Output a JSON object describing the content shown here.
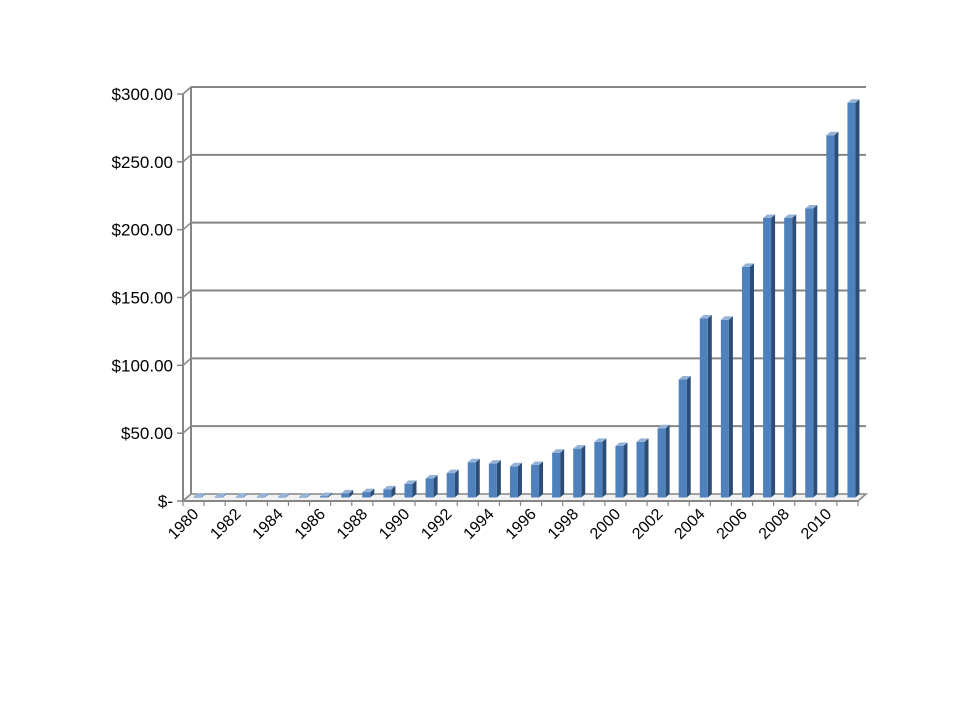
{
  "chart_data": {
    "type": "bar",
    "title": "",
    "xlabel": "",
    "ylabel": "",
    "ylim": [
      0,
      300
    ],
    "grid": true,
    "legend": "none",
    "y_ticks": [
      {
        "value": 0,
        "label": "$-"
      },
      {
        "value": 50,
        "label": "$50.00"
      },
      {
        "value": 100,
        "label": "$100.00"
      },
      {
        "value": 150,
        "label": "$150.00"
      },
      {
        "value": 200,
        "label": "$200.00"
      },
      {
        "value": 250,
        "label": "$250.00"
      },
      {
        "value": 300,
        "label": "$300.00"
      }
    ],
    "x_tick_labels": [
      "1980",
      "1982",
      "1984",
      "1986",
      "1988",
      "1990",
      "1992",
      "1994",
      "1996",
      "1998",
      "2000",
      "2002",
      "2004",
      "2006",
      "2008",
      "2010"
    ],
    "categories": [
      "1980",
      "1981",
      "1982",
      "1983",
      "1984",
      "1985",
      "1986",
      "1987",
      "1988",
      "1989",
      "1990",
      "1991",
      "1992",
      "1993",
      "1994",
      "1995",
      "1996",
      "1997",
      "1998",
      "1999",
      "2000",
      "2001",
      "2002",
      "2003",
      "2004",
      "2005",
      "2006",
      "2007",
      "2008",
      "2009",
      "2010",
      "2011"
    ],
    "values": [
      0.5,
      0.5,
      0.5,
      0.5,
      0.5,
      0.5,
      1,
      3,
      4,
      6,
      10,
      14,
      18,
      26,
      25,
      23,
      24,
      33,
      36,
      41,
      38,
      41,
      51,
      87,
      132,
      131,
      170,
      206,
      206,
      213,
      267,
      291
    ],
    "colors": {
      "bar_front": "#4f81bd",
      "bar_side": "#2c4d75",
      "bar_top": "#95b3d7",
      "gridline": "#868686",
      "axis": "#868686"
    }
  }
}
